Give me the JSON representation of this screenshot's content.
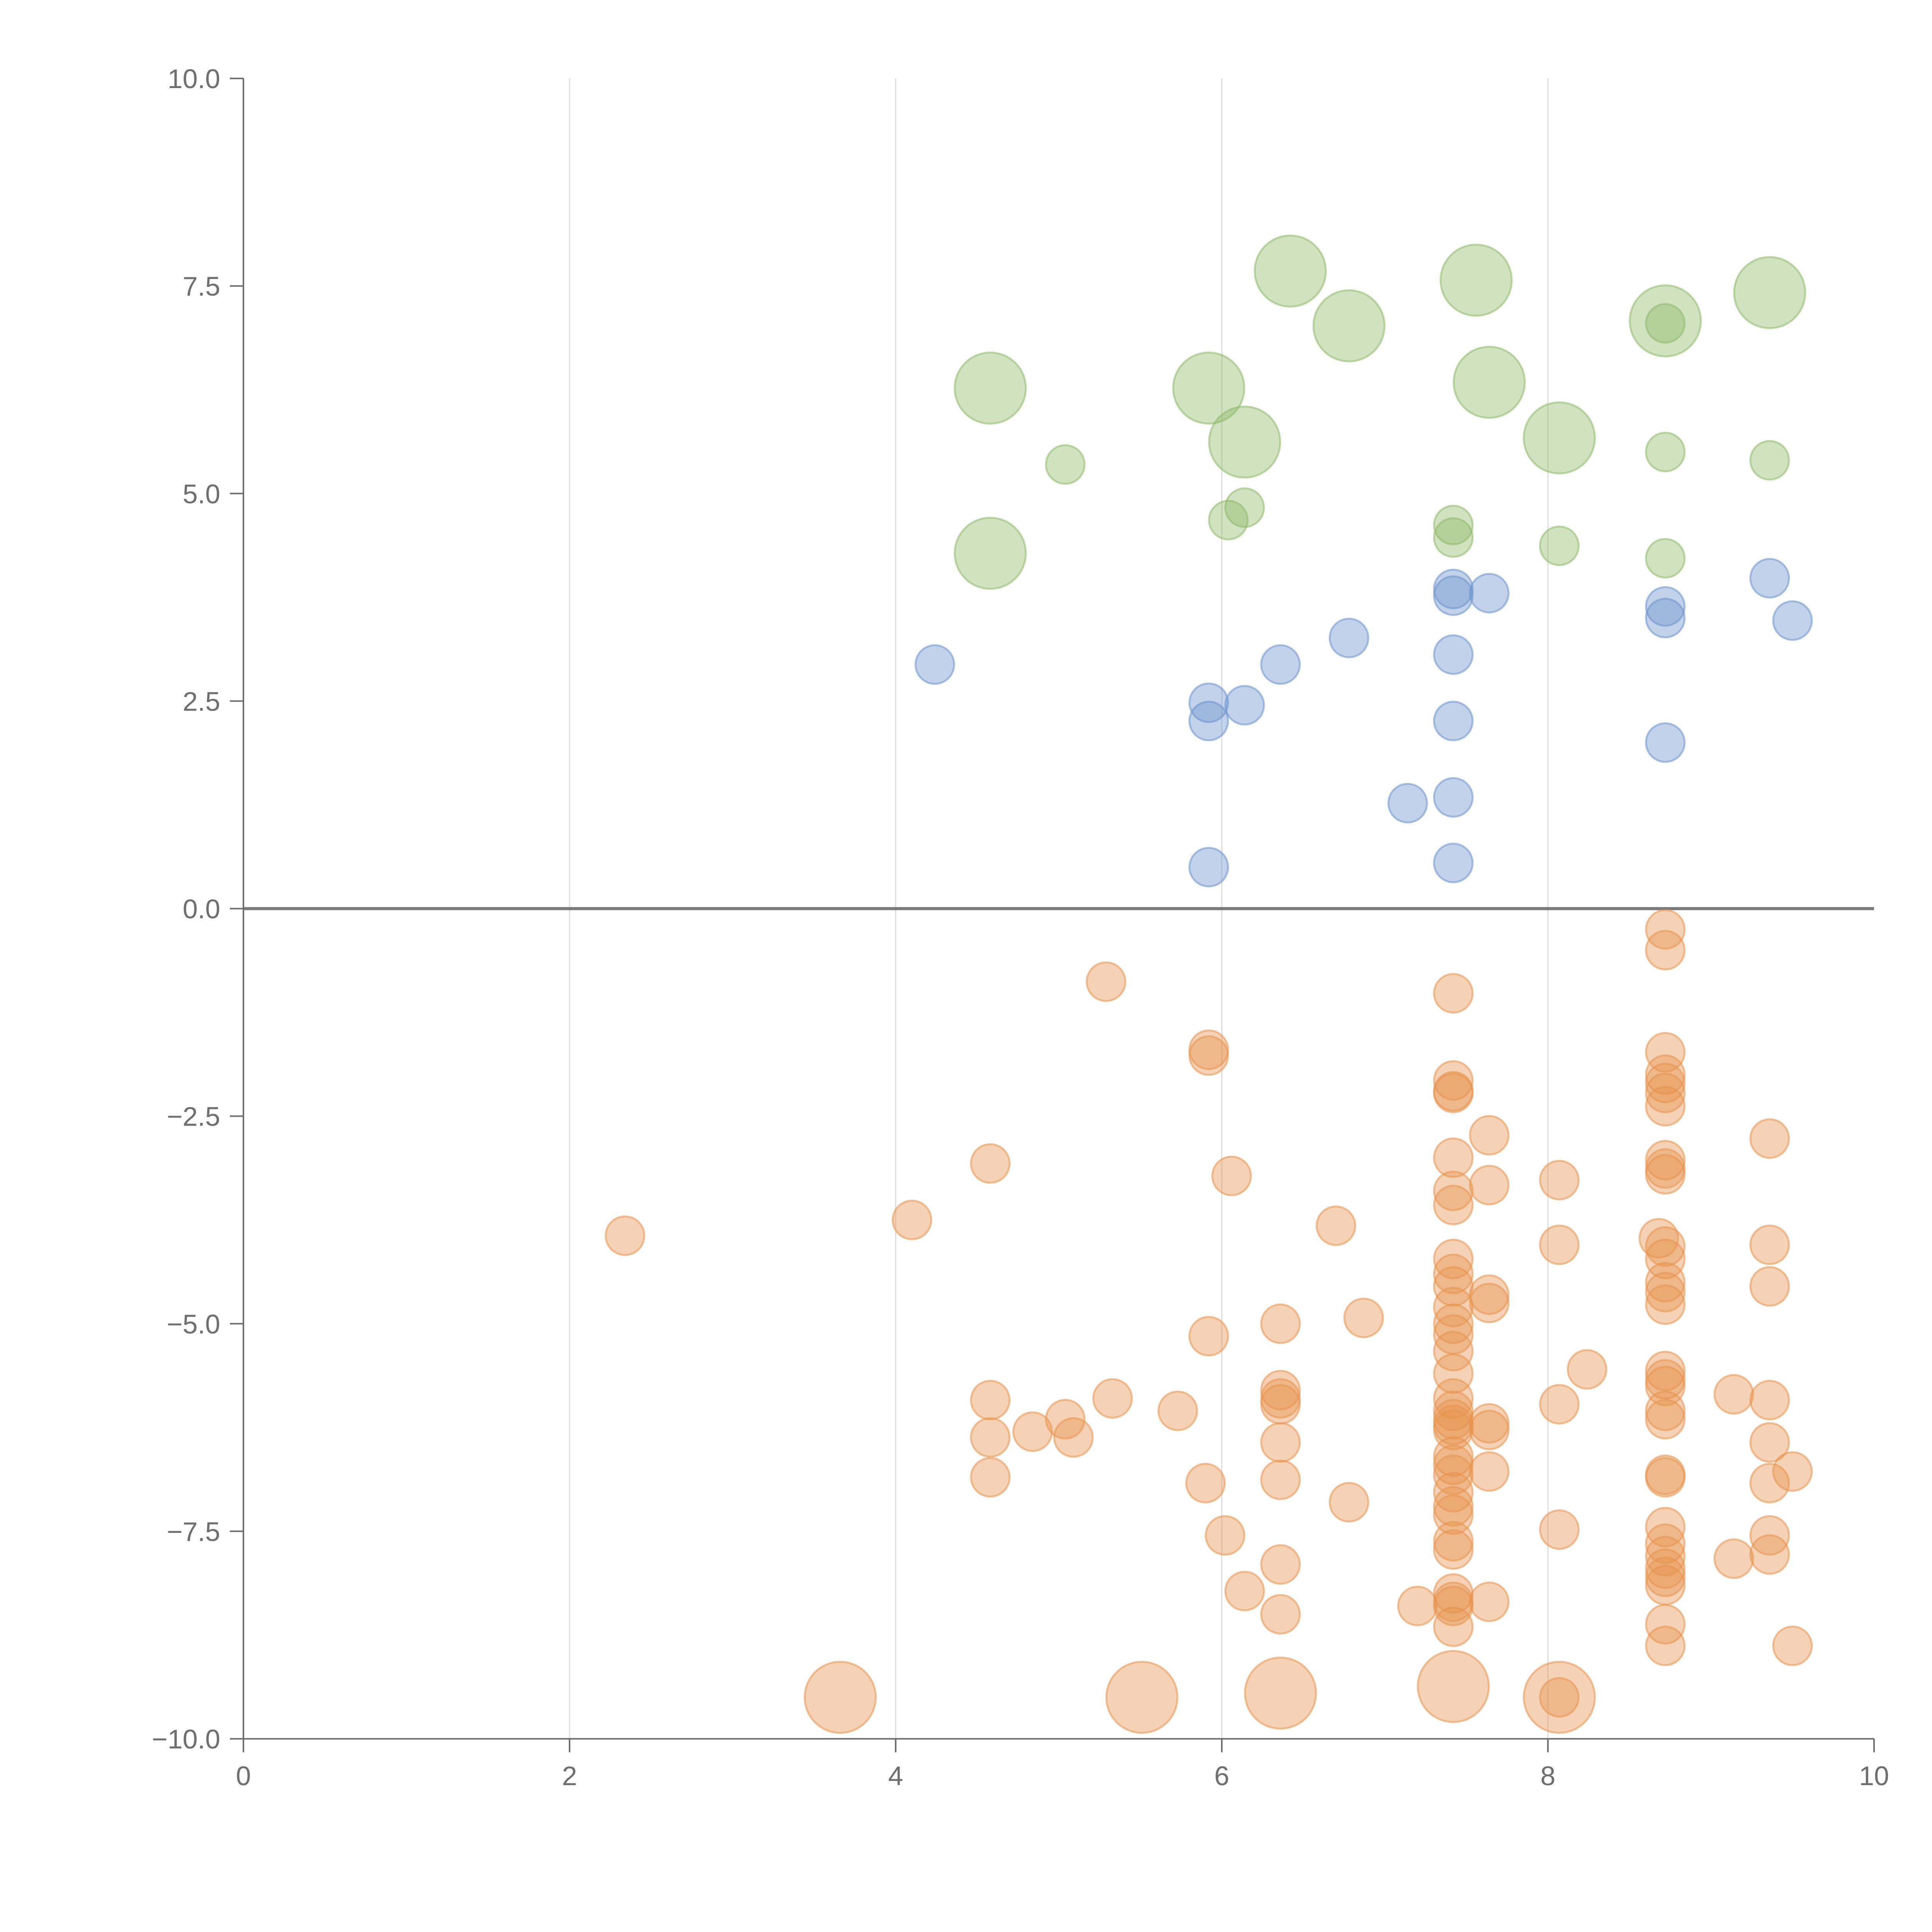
{
  "chart_data": {
    "type": "scatter",
    "title": "",
    "xlabel": "",
    "ylabel": "",
    "xlim": [
      0,
      10
    ],
    "ylim": [
      -10,
      10
    ],
    "x_ticks": [
      0,
      2,
      4,
      6,
      8,
      10
    ],
    "y_ticks": [
      -10.0,
      -7.5,
      -5.0,
      -2.5,
      0.0,
      2.5,
      5.0,
      7.5,
      10.0
    ],
    "x_tick_labels": [
      "0",
      "2",
      "4",
      "6",
      "8",
      "10"
    ],
    "y_tick_labels": [
      "−10.0",
      "−7.5",
      "−5.0",
      "−2.5",
      "0.0",
      "2.5",
      "5.0",
      "7.5",
      "10.0"
    ],
    "grid": "vertical",
    "reference_line_y": 0,
    "legend": "none",
    "series": [
      {
        "color": "#8fb96a",
        "points": [
          [
            6.42,
            7.68,
            2
          ],
          [
            7.56,
            7.57,
            2
          ],
          [
            9.36,
            7.42,
            2
          ],
          [
            6.78,
            7.02,
            2
          ],
          [
            8.72,
            7.08,
            2
          ],
          [
            8.72,
            7.05,
            1
          ],
          [
            4.58,
            6.27,
            2
          ],
          [
            5.92,
            6.27,
            2
          ],
          [
            7.64,
            6.34,
            2
          ],
          [
            6.14,
            5.62,
            2
          ],
          [
            8.07,
            5.67,
            2
          ],
          [
            5.04,
            5.35,
            1
          ],
          [
            8.72,
            5.5,
            1
          ],
          [
            9.36,
            5.4,
            1
          ],
          [
            6.14,
            4.83,
            1
          ],
          [
            6.04,
            4.68,
            1
          ],
          [
            7.42,
            4.62,
            1
          ],
          [
            7.42,
            4.47,
            1
          ],
          [
            8.07,
            4.37,
            1
          ],
          [
            8.72,
            4.22,
            1
          ],
          [
            4.58,
            4.28,
            2
          ]
        ]
      },
      {
        "color": "#6e94cc",
        "points": [
          [
            7.42,
            3.85,
            1
          ],
          [
            7.42,
            3.77,
            1
          ],
          [
            7.64,
            3.8,
            1
          ],
          [
            9.36,
            3.98,
            1
          ],
          [
            8.72,
            3.64,
            1
          ],
          [
            8.72,
            3.5,
            1
          ],
          [
            9.5,
            3.47,
            1
          ],
          [
            6.78,
            3.26,
            1
          ],
          [
            7.42,
            3.06,
            1
          ],
          [
            4.24,
            2.94,
            1
          ],
          [
            6.36,
            2.94,
            1
          ],
          [
            5.92,
            2.48,
            1
          ],
          [
            6.14,
            2.45,
            1
          ],
          [
            5.92,
            2.26,
            1
          ],
          [
            7.42,
            2.26,
            1
          ],
          [
            8.72,
            2.0,
            1
          ],
          [
            7.42,
            1.34,
            1
          ],
          [
            7.14,
            1.27,
            1
          ],
          [
            7.42,
            0.55,
            1
          ],
          [
            5.92,
            0.5,
            1
          ]
        ]
      },
      {
        "color": "#e8944f",
        "points": [
          [
            8.72,
            -0.25,
            1
          ],
          [
            8.72,
            -0.5,
            1
          ],
          [
            5.29,
            -0.88,
            1
          ],
          [
            7.42,
            -1.02,
            1
          ],
          [
            5.92,
            -1.7,
            1
          ],
          [
            5.92,
            -1.77,
            1
          ],
          [
            8.72,
            -1.73,
            1
          ],
          [
            8.72,
            -2.0,
            1
          ],
          [
            8.72,
            -2.1,
            1
          ],
          [
            8.72,
            -2.22,
            1
          ],
          [
            7.42,
            -2.07,
            1
          ],
          [
            7.42,
            -2.2,
            1
          ],
          [
            7.42,
            -2.22,
            1
          ],
          [
            8.72,
            -2.38,
            1
          ],
          [
            7.64,
            -2.73,
            1
          ],
          [
            9.36,
            -2.77,
            1
          ],
          [
            4.58,
            -3.07,
            1
          ],
          [
            7.42,
            -3.0,
            1
          ],
          [
            8.72,
            -3.03,
            1
          ],
          [
            8.72,
            -3.13,
            1
          ],
          [
            8.72,
            -3.2,
            1
          ],
          [
            6.06,
            -3.22,
            1
          ],
          [
            8.07,
            -3.27,
            1
          ],
          [
            7.64,
            -3.33,
            1
          ],
          [
            7.42,
            -3.4,
            1
          ],
          [
            7.42,
            -3.57,
            1
          ],
          [
            4.1,
            -3.75,
            1
          ],
          [
            6.7,
            -3.82,
            1
          ],
          [
            2.34,
            -3.94,
            1
          ],
          [
            8.68,
            -3.97,
            1
          ],
          [
            8.72,
            -4.07,
            1
          ],
          [
            8.07,
            -4.05,
            1
          ],
          [
            9.36,
            -4.05,
            1
          ],
          [
            7.42,
            -4.22,
            1
          ],
          [
            8.72,
            -4.22,
            1
          ],
          [
            7.42,
            -4.4,
            1
          ],
          [
            8.72,
            -4.5,
            1
          ],
          [
            7.42,
            -4.55,
            1
          ],
          [
            9.36,
            -4.55,
            1
          ],
          [
            8.72,
            -4.62,
            1
          ],
          [
            7.64,
            -4.65,
            1
          ],
          [
            7.64,
            -4.75,
            1
          ],
          [
            8.72,
            -4.77,
            1
          ],
          [
            7.42,
            -4.8,
            1
          ],
          [
            6.36,
            -5.0,
            1
          ],
          [
            6.87,
            -4.93,
            1
          ],
          [
            7.42,
            -5.0,
            1
          ],
          [
            7.42,
            -5.13,
            1
          ],
          [
            5.92,
            -5.15,
            1
          ],
          [
            7.42,
            -5.33,
            1
          ],
          [
            8.24,
            -5.55,
            1
          ],
          [
            7.42,
            -5.6,
            1
          ],
          [
            8.72,
            -5.57,
            1
          ],
          [
            8.72,
            -5.67,
            1
          ],
          [
            8.72,
            -5.75,
            1
          ],
          [
            6.36,
            -5.8,
            1
          ],
          [
            6.36,
            -5.9,
            1
          ],
          [
            9.14,
            -5.85,
            1
          ],
          [
            5.33,
            -5.9,
            1
          ],
          [
            7.42,
            -5.9,
            1
          ],
          [
            4.58,
            -5.92,
            1
          ],
          [
            9.36,
            -5.92,
            1
          ],
          [
            6.36,
            -5.97,
            1
          ],
          [
            8.07,
            -5.97,
            1
          ],
          [
            7.42,
            -6.05,
            1
          ],
          [
            5.73,
            -6.05,
            1
          ],
          [
            8.72,
            -6.05,
            1
          ],
          [
            7.42,
            -6.15,
            1
          ],
          [
            5.04,
            -6.15,
            1
          ],
          [
            7.42,
            -6.22,
            1
          ],
          [
            8.72,
            -6.15,
            1
          ],
          [
            7.64,
            -6.2,
            1
          ],
          [
            7.64,
            -6.28,
            1
          ],
          [
            7.42,
            -6.28,
            1
          ],
          [
            4.84,
            -6.3,
            1
          ],
          [
            4.58,
            -6.37,
            1
          ],
          [
            5.09,
            -6.37,
            1
          ],
          [
            6.36,
            -6.43,
            1
          ],
          [
            9.36,
            -6.43,
            1
          ],
          [
            7.42,
            -6.6,
            1
          ],
          [
            7.42,
            -6.7,
            1
          ],
          [
            7.64,
            -6.78,
            1
          ],
          [
            9.5,
            -6.78,
            1
          ],
          [
            7.42,
            -6.82,
            1
          ],
          [
            8.72,
            -6.82,
            1
          ],
          [
            8.72,
            -6.85,
            1
          ],
          [
            4.58,
            -6.85,
            1
          ],
          [
            6.36,
            -6.88,
            1
          ],
          [
            5.9,
            -6.92,
            1
          ],
          [
            9.36,
            -6.92,
            1
          ],
          [
            7.42,
            -7.03,
            1
          ],
          [
            6.78,
            -7.15,
            1
          ],
          [
            7.42,
            -7.2,
            1
          ],
          [
            7.42,
            -7.3,
            1
          ],
          [
            8.72,
            -7.45,
            1
          ],
          [
            8.07,
            -7.48,
            1
          ],
          [
            6.02,
            -7.55,
            1
          ],
          [
            9.36,
            -7.55,
            1
          ],
          [
            7.42,
            -7.62,
            1
          ],
          [
            8.72,
            -7.65,
            1
          ],
          [
            7.42,
            -7.72,
            1
          ],
          [
            9.36,
            -7.78,
            1
          ],
          [
            8.72,
            -7.8,
            1
          ],
          [
            9.14,
            -7.83,
            1
          ],
          [
            6.36,
            -7.9,
            1
          ],
          [
            8.72,
            -7.95,
            1
          ],
          [
            8.72,
            -8.05,
            1
          ],
          [
            8.72,
            -8.15,
            1
          ],
          [
            7.42,
            -8.25,
            1
          ],
          [
            6.14,
            -8.22,
            1
          ],
          [
            7.42,
            -8.35,
            1
          ],
          [
            7.42,
            -8.4,
            1
          ],
          [
            7.2,
            -8.4,
            1
          ],
          [
            7.64,
            -8.35,
            1
          ],
          [
            6.36,
            -8.5,
            1
          ],
          [
            8.72,
            -8.62,
            1
          ],
          [
            7.42,
            -8.65,
            1
          ],
          [
            8.72,
            -8.88,
            1
          ],
          [
            9.5,
            -8.88,
            1
          ],
          [
            3.66,
            -9.5,
            2
          ],
          [
            5.51,
            -9.5,
            2
          ],
          [
            6.36,
            -9.45,
            2
          ],
          [
            7.42,
            -9.37,
            2
          ],
          [
            8.07,
            -9.5,
            2
          ],
          [
            8.07,
            -9.5,
            1
          ]
        ]
      }
    ]
  }
}
